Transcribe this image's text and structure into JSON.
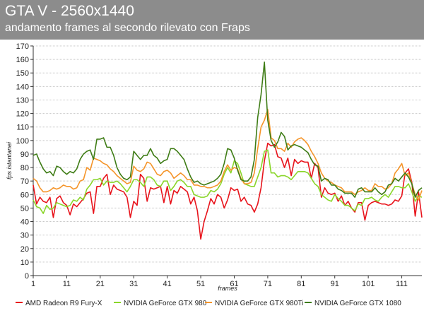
{
  "chart_data": {
    "type": "line",
    "title": "GTA V - 2560x1440",
    "subtitle": "andamento frames al secondo rilevato con Fraps",
    "xlabel": "frames",
    "ylabel": "fps istantanei",
    "xlim": [
      1,
      117
    ],
    "ylim": [
      0,
      170
    ],
    "yticks": [
      0,
      10,
      20,
      30,
      40,
      50,
      60,
      70,
      80,
      90,
      100,
      110,
      120,
      130,
      140,
      150,
      160,
      170
    ],
    "xticks": [
      1,
      11,
      21,
      31,
      41,
      51,
      61,
      71,
      81,
      91,
      101,
      111
    ],
    "grid": true,
    "legend_position": "bottom",
    "series": [
      {
        "name": "AMD Radeon R9 Fury-X",
        "color": "#e8141c",
        "values": [
          67,
          53,
          58,
          55,
          54,
          58,
          43,
          57,
          59,
          54,
          52,
          45,
          53,
          51,
          54,
          57,
          61,
          62,
          46,
          66,
          66,
          72,
          75,
          60,
          67,
          64,
          63,
          62,
          58,
          43,
          55,
          52,
          75,
          72,
          55,
          65,
          64,
          65,
          66,
          54,
          66,
          53,
          63,
          61,
          66,
          64,
          62,
          53,
          58,
          48,
          27,
          40,
          48,
          57,
          53,
          60,
          58,
          50,
          56,
          65,
          63,
          64,
          55,
          58,
          53,
          52,
          47,
          53,
          65,
          85,
          98,
          96,
          97,
          88,
          87,
          80,
          87,
          74,
          86,
          83,
          85,
          84,
          84,
          72,
          83,
          80,
          58,
          65,
          61,
          60,
          61,
          55,
          59,
          52,
          55,
          50,
          47,
          54,
          54,
          41,
          52,
          54,
          55,
          54,
          53,
          53,
          52,
          53,
          56,
          55,
          59,
          76,
          79,
          69,
          44,
          62,
          43
        ]
      },
      {
        "name": "NVIDIA GeForce GTX 980",
        "color": "#8ad62a",
        "values": [
          56,
          51,
          50,
          46,
          52,
          49,
          50,
          54,
          53,
          52,
          51,
          52,
          56,
          55,
          58,
          56,
          64,
          67,
          71,
          71,
          72,
          67,
          70,
          69,
          69,
          70,
          68,
          65,
          62,
          66,
          71,
          71,
          69,
          66,
          73,
          73,
          71,
          67,
          66,
          70,
          70,
          63,
          66,
          70,
          71,
          69,
          66,
          66,
          60,
          59,
          58,
          58,
          59,
          63,
          62,
          64,
          68,
          75,
          80,
          76,
          85,
          83,
          76,
          68,
          67,
          66,
          66,
          73,
          80,
          92,
          93,
          76,
          76,
          73,
          74,
          74,
          73,
          71,
          74,
          77,
          77,
          77,
          76,
          72,
          68,
          66,
          60,
          58,
          56,
          55,
          60,
          57,
          55,
          52,
          52,
          50,
          48,
          53,
          52,
          57,
          57,
          58,
          56,
          55,
          58,
          60,
          58,
          62,
          66,
          66,
          65,
          65,
          68,
          62,
          55,
          59,
          58
        ]
      },
      {
        "name": "NVIDIA GeForce GTX 980Ti",
        "color": "#f5952a",
        "values": [
          72,
          70,
          65,
          62,
          62,
          63,
          65,
          64,
          65,
          67,
          66,
          66,
          64,
          65,
          70,
          71,
          80,
          78,
          87,
          86,
          85,
          83,
          82,
          79,
          77,
          74,
          72,
          70,
          68,
          69,
          81,
          78,
          77,
          79,
          84,
          83,
          79,
          75,
          74,
          77,
          78,
          76,
          72,
          74,
          76,
          74,
          71,
          71,
          67,
          67,
          66,
          66,
          65,
          65,
          66,
          67,
          70,
          77,
          82,
          78,
          80,
          79,
          72,
          68,
          68,
          69,
          76,
          94,
          110,
          115,
          123,
          102,
          100,
          94,
          94,
          92,
          98,
          95,
          99,
          101,
          102,
          100,
          97,
          92,
          88,
          83,
          76,
          72,
          70,
          69,
          67,
          66,
          65,
          62,
          62,
          62,
          60,
          62,
          63,
          65,
          63,
          63,
          68,
          66,
          66,
          64,
          65,
          68,
          76,
          79,
          83,
          74,
          76,
          68,
          60,
          56,
          63
        ]
      },
      {
        "name": "NVIDIA GeForce GTX 1080",
        "color": "#3e7c15",
        "values": [
          89,
          90,
          84,
          79,
          76,
          77,
          74,
          81,
          80,
          77,
          75,
          77,
          76,
          79,
          86,
          90,
          92,
          93,
          86,
          101,
          101,
          102,
          95,
          95,
          89,
          80,
          75,
          72,
          71,
          73,
          92,
          89,
          86,
          89,
          89,
          94,
          89,
          87,
          83,
          85,
          86,
          94,
          94,
          92,
          89,
          86,
          79,
          73,
          69,
          70,
          68,
          67,
          68,
          69,
          70,
          72,
          75,
          83,
          94,
          93,
          87,
          78,
          71,
          70,
          70,
          73,
          86,
          117,
          134,
          158,
          115,
          100,
          95,
          99,
          106,
          103,
          93,
          96,
          97,
          96,
          95,
          93,
          91,
          86,
          82,
          81,
          70,
          72,
          71,
          67,
          67,
          64,
          63,
          61,
          61,
          61,
          58,
          64,
          65,
          62,
          62,
          62,
          65,
          62,
          60,
          62,
          67,
          68,
          72,
          70,
          73,
          76,
          73,
          68,
          58,
          63,
          65
        ]
      }
    ]
  }
}
